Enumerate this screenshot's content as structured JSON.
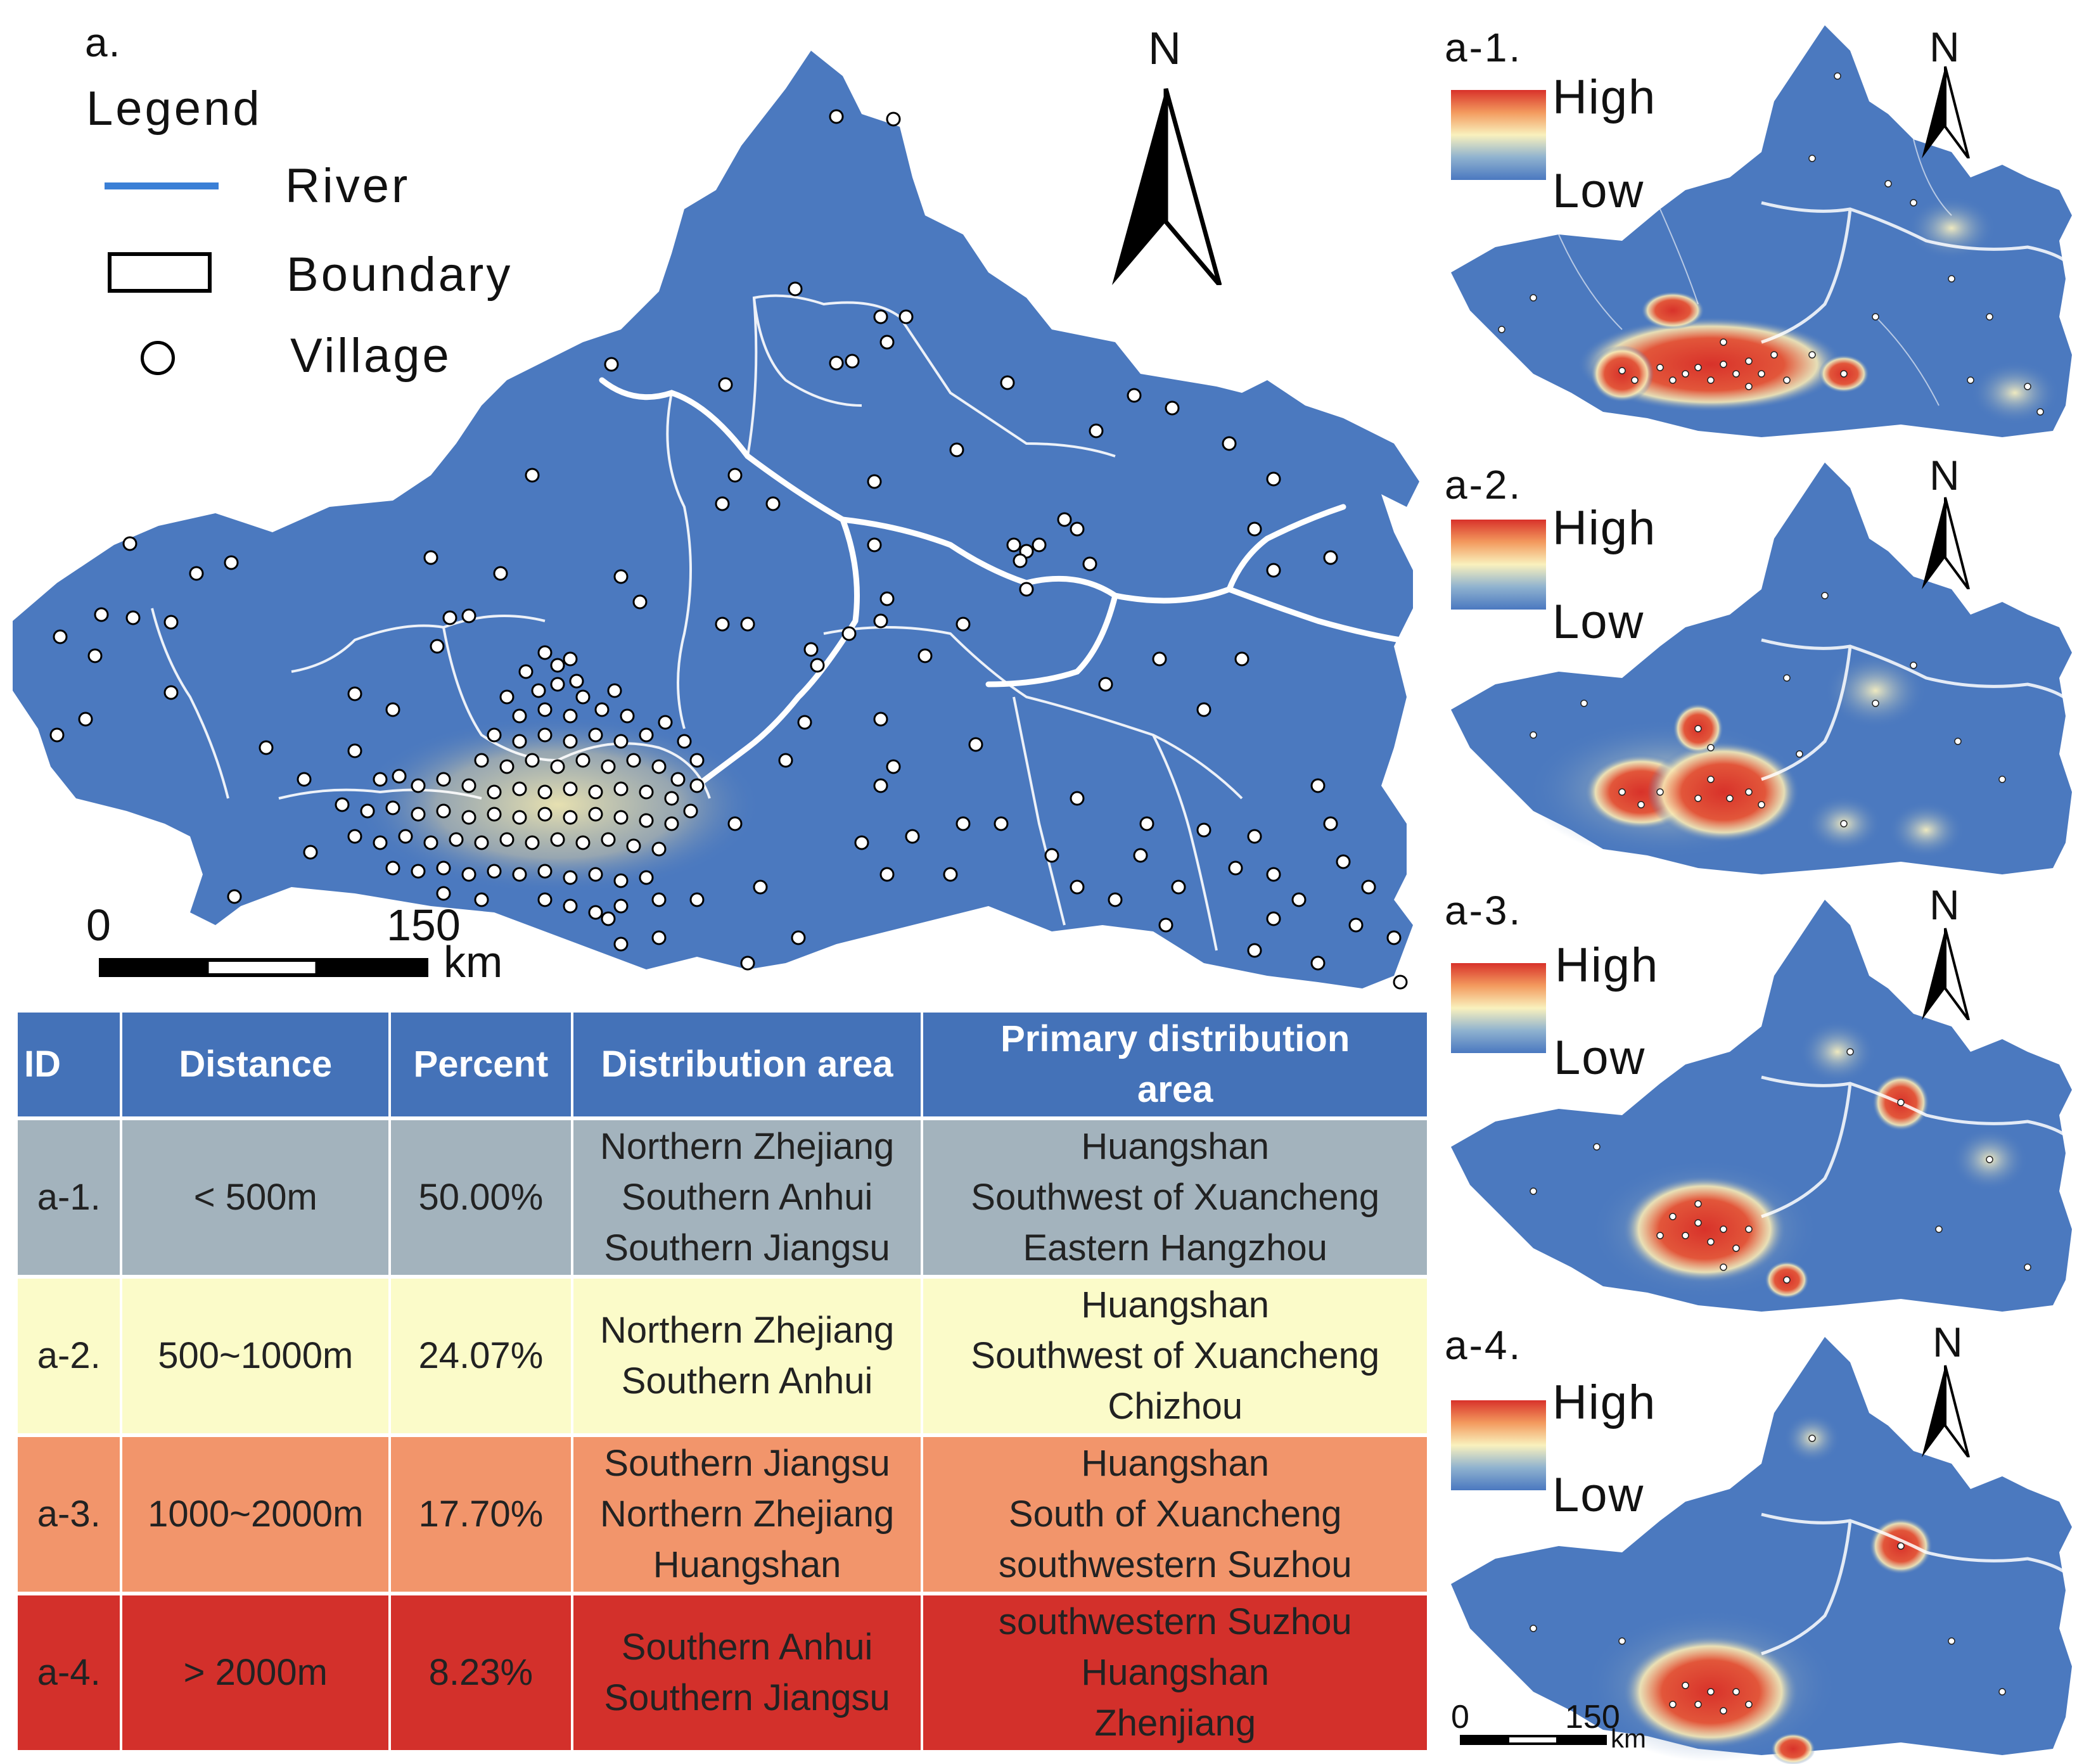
{
  "main_map": {
    "panel_label": "a.",
    "legend": {
      "title": "Legend",
      "items": [
        {
          "label": "River",
          "symbol": "line",
          "color": "#3a7fd6"
        },
        {
          "label": "Boundary",
          "symbol": "rectangle",
          "color": "#000000"
        },
        {
          "label": "Village",
          "symbol": "circle",
          "color": "#ffffff"
        }
      ]
    },
    "north_arrow": "N",
    "scale_bar": {
      "start": "0",
      "end": "150",
      "unit": "km"
    },
    "colors": {
      "land": "#4b79bf",
      "river": "#3a7fd6",
      "boundary": "#ffffff",
      "hotspot": "#e6dca2",
      "village_fill": "#ffffff",
      "village_stroke": "#000000"
    }
  },
  "density_maps": [
    {
      "id": "a-1.",
      "high": "High",
      "low": "Low",
      "north": "N"
    },
    {
      "id": "a-2.",
      "high": "High",
      "low": "Low",
      "north": "N"
    },
    {
      "id": "a-3.",
      "high": "High",
      "low": "Low",
      "north": "N"
    },
    {
      "id": "a-4.",
      "high": "High",
      "low": "Low",
      "north": "N"
    }
  ],
  "small_scale_bar": {
    "start": "0",
    "end": "150",
    "unit": "km"
  },
  "table": {
    "headers": [
      "ID",
      "Distance",
      "Percent",
      "Distribution area",
      "Primary distribution area"
    ],
    "rows": [
      {
        "id": "a-1.",
        "distance": "< 500m",
        "percent": "50.00%",
        "distribution_area": [
          "Northern Zhejiang",
          "Southern Anhui",
          "Southern Jiangsu"
        ],
        "primary_area": [
          "Huangshan",
          "Southwest of Xuancheng",
          "Eastern Hangzhou"
        ],
        "color": "#a3b3bd"
      },
      {
        "id": "a-2.",
        "distance": "500~1000m",
        "percent": "24.07%",
        "distribution_area": [
          "Northern Zhejiang",
          "Southern Anhui"
        ],
        "primary_area": [
          "Huangshan",
          "Southwest of Xuancheng",
          "Chizhou"
        ],
        "color": "#fbfbc9"
      },
      {
        "id": "a-3.",
        "distance": "1000~2000m",
        "percent": "17.70%",
        "distribution_area": [
          "Southern Jiangsu",
          "Northern Zhejiang",
          "Huangshan"
        ],
        "primary_area": [
          "Huangshan",
          "South of Xuancheng",
          "southwestern Suzhou"
        ],
        "color": "#f2956b"
      },
      {
        "id": "a-4.",
        "distance": "> 2000m",
        "percent": "8.23%",
        "distribution_area": [
          "Southern Anhui",
          "Southern Jiangsu"
        ],
        "primary_area": [
          "southwestern Suzhou",
          "Huangshan",
          "Zhenjiang"
        ],
        "color": "#d3302b"
      }
    ]
  }
}
